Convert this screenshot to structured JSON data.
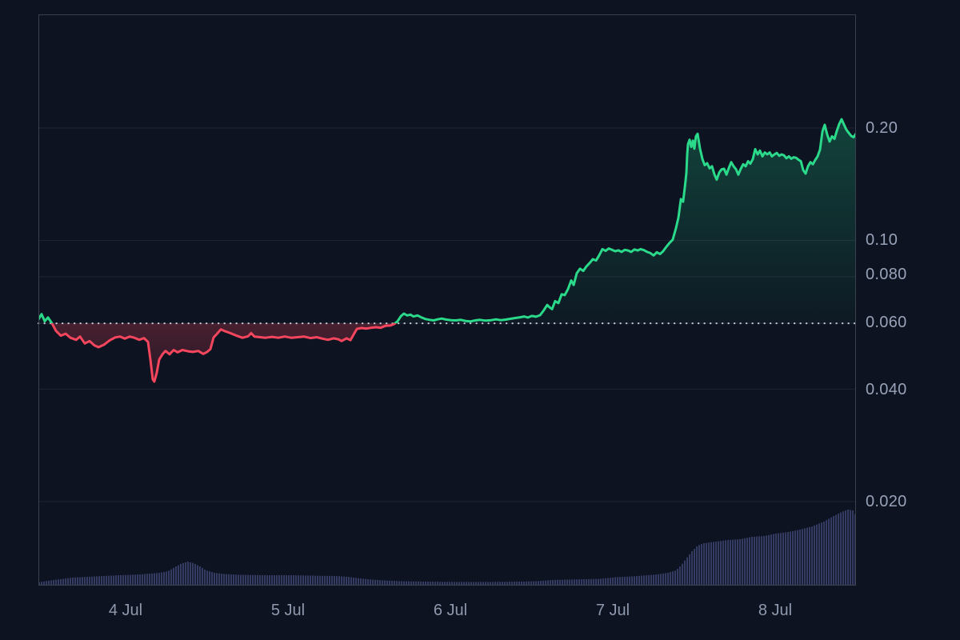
{
  "chart_data": {
    "type": "line",
    "title": "",
    "xlabel": "",
    "ylabel": "",
    "y_axis": {
      "scale": "log",
      "side": "right",
      "range": [
        0.018,
        0.23
      ]
    },
    "grid": true,
    "baseline_value": 0.06,
    "y_ticks": [
      {
        "label": "0.20",
        "value": 0.2
      },
      {
        "label": "0.10",
        "value": 0.1
      },
      {
        "label": "0.080",
        "value": 0.08
      },
      {
        "label": "0.060",
        "value": 0.06
      },
      {
        "label": "0.040",
        "value": 0.04
      },
      {
        "label": "0.020",
        "value": 0.02
      }
    ],
    "x_ticks": [
      {
        "label": "4 Jul",
        "day": 4
      },
      {
        "label": "5 Jul",
        "day": 5
      },
      {
        "label": "6 Jul",
        "day": 6
      },
      {
        "label": "7 Jul",
        "day": 7
      },
      {
        "label": "8 Jul",
        "day": 8
      }
    ],
    "colors": {
      "up_line": "#2bd98a",
      "down_line": "#f6465d",
      "up_fill": "34,211,140",
      "down_fill": "244,68,92",
      "volume_bar": "#343c63",
      "baseline_dots": "rgba(226,232,244,0.85)",
      "gridline": "rgba(160,175,205,0.12)",
      "plot_border": "#3a404e",
      "background": "#0d1320",
      "tick_text": "#98a2b8"
    },
    "price_series": [
      [
        3.463,
        0.0615
      ],
      [
        3.483,
        0.0635
      ],
      [
        3.502,
        0.0608
      ],
      [
        3.522,
        0.0622
      ],
      [
        3.547,
        0.06
      ],
      [
        3.571,
        0.0573
      ],
      [
        3.601,
        0.0556
      ],
      [
        3.631,
        0.0563
      ],
      [
        3.66,
        0.0549
      ],
      [
        3.695,
        0.0542
      ],
      [
        3.719,
        0.0553
      ],
      [
        3.749,
        0.053
      ],
      [
        3.778,
        0.0538
      ],
      [
        3.808,
        0.0524
      ],
      [
        3.833,
        0.0518
      ],
      [
        3.867,
        0.0526
      ],
      [
        3.901,
        0.054
      ],
      [
        3.936,
        0.055
      ],
      [
        3.966,
        0.0553
      ],
      [
        3.995,
        0.0546
      ],
      [
        4.025,
        0.0553
      ],
      [
        4.054,
        0.0549
      ],
      [
        4.084,
        0.0542
      ],
      [
        4.113,
        0.0548
      ],
      [
        4.138,
        0.0535
      ],
      [
        4.153,
        0.0478
      ],
      [
        4.167,
        0.0425
      ],
      [
        4.177,
        0.0419
      ],
      [
        4.192,
        0.0443
      ],
      [
        4.207,
        0.048
      ],
      [
        4.227,
        0.0496
      ],
      [
        4.246,
        0.0506
      ],
      [
        4.271,
        0.0496
      ],
      [
        4.296,
        0.0509
      ],
      [
        4.32,
        0.0502
      ],
      [
        4.35,
        0.0509
      ],
      [
        4.384,
        0.0505
      ],
      [
        4.414,
        0.0503
      ],
      [
        4.448,
        0.0506
      ],
      [
        4.478,
        0.0497
      ],
      [
        4.502,
        0.0503
      ],
      [
        4.522,
        0.0512
      ],
      [
        4.542,
        0.055
      ],
      [
        4.562,
        0.0562
      ],
      [
        4.586,
        0.0578
      ],
      [
        4.611,
        0.0572
      ],
      [
        4.64,
        0.0566
      ],
      [
        4.68,
        0.0557
      ],
      [
        4.719,
        0.0549
      ],
      [
        4.754,
        0.0554
      ],
      [
        4.773,
        0.0565
      ],
      [
        4.793,
        0.0553
      ],
      [
        4.828,
        0.0551
      ],
      [
        4.862,
        0.0549
      ],
      [
        4.901,
        0.0552
      ],
      [
        4.941,
        0.0549
      ],
      [
        4.98,
        0.0553
      ],
      [
        5.02,
        0.0549
      ],
      [
        5.059,
        0.0551
      ],
      [
        5.098,
        0.0553
      ],
      [
        5.138,
        0.0548
      ],
      [
        5.177,
        0.0551
      ],
      [
        5.212,
        0.0546
      ],
      [
        5.246,
        0.0542
      ],
      [
        5.281,
        0.0547
      ],
      [
        5.31,
        0.0544
      ],
      [
        5.33,
        0.0538
      ],
      [
        5.36,
        0.0547
      ],
      [
        5.384,
        0.0541
      ],
      [
        5.404,
        0.056
      ],
      [
        5.424,
        0.058
      ],
      [
        5.453,
        0.0583
      ],
      [
        5.483,
        0.0581
      ],
      [
        5.512,
        0.0584
      ],
      [
        5.542,
        0.0586
      ],
      [
        5.571,
        0.0584
      ],
      [
        5.601,
        0.0591
      ],
      [
        5.631,
        0.0592
      ],
      [
        5.655,
        0.0598
      ],
      [
        5.675,
        0.0608
      ],
      [
        5.695,
        0.0627
      ],
      [
        5.714,
        0.0637
      ],
      [
        5.734,
        0.063
      ],
      [
        5.754,
        0.0633
      ],
      [
        5.773,
        0.0626
      ],
      [
        5.798,
        0.063
      ],
      [
        5.823,
        0.0622
      ],
      [
        5.847,
        0.0616
      ],
      [
        5.872,
        0.0613
      ],
      [
        5.897,
        0.0611
      ],
      [
        5.921,
        0.0615
      ],
      [
        5.946,
        0.0618
      ],
      [
        5.975,
        0.0614
      ],
      [
        6.005,
        0.0612
      ],
      [
        6.034,
        0.0611
      ],
      [
        6.064,
        0.0613
      ],
      [
        6.094,
        0.0609
      ],
      [
        6.123,
        0.0607
      ],
      [
        6.153,
        0.0611
      ],
      [
        6.182,
        0.0613
      ],
      [
        6.217,
        0.061
      ],
      [
        6.251,
        0.0612
      ],
      [
        6.281,
        0.0615
      ],
      [
        6.31,
        0.0612
      ],
      [
        6.34,
        0.0614
      ],
      [
        6.369,
        0.0617
      ],
      [
        6.399,
        0.062
      ],
      [
        6.429,
        0.0623
      ],
      [
        6.453,
        0.0626
      ],
      [
        6.478,
        0.0622
      ],
      [
        6.502,
        0.0628
      ],
      [
        6.527,
        0.0625
      ],
      [
        6.552,
        0.0631
      ],
      [
        6.576,
        0.0651
      ],
      [
        6.596,
        0.0672
      ],
      [
        6.611,
        0.0662
      ],
      [
        6.626,
        0.0655
      ],
      [
        6.645,
        0.0688
      ],
      [
        6.665,
        0.068
      ],
      [
        6.685,
        0.0718
      ],
      [
        6.704,
        0.0714
      ],
      [
        6.724,
        0.0741
      ],
      [
        6.744,
        0.0782
      ],
      [
        6.759,
        0.076
      ],
      [
        6.778,
        0.0817
      ],
      [
        6.798,
        0.084
      ],
      [
        6.818,
        0.0829
      ],
      [
        6.837,
        0.0852
      ],
      [
        6.857,
        0.087
      ],
      [
        6.877,
        0.0891
      ],
      [
        6.897,
        0.0884
      ],
      [
        6.916,
        0.0912
      ],
      [
        6.936,
        0.0948
      ],
      [
        6.956,
        0.0938
      ],
      [
        6.975,
        0.0952
      ],
      [
        6.995,
        0.0944
      ],
      [
        7.015,
        0.0936
      ],
      [
        7.034,
        0.0941
      ],
      [
        7.054,
        0.0932
      ],
      [
        7.074,
        0.0944
      ],
      [
        7.094,
        0.094
      ],
      [
        7.113,
        0.0932
      ],
      [
        7.133,
        0.0946
      ],
      [
        7.153,
        0.094
      ],
      [
        7.172,
        0.0948
      ],
      [
        7.192,
        0.0942
      ],
      [
        7.212,
        0.0932
      ],
      [
        7.232,
        0.0925
      ],
      [
        7.251,
        0.0912
      ],
      [
        7.271,
        0.093
      ],
      [
        7.291,
        0.092
      ],
      [
        7.31,
        0.0936
      ],
      [
        7.33,
        0.0962
      ],
      [
        7.35,
        0.0985
      ],
      [
        7.369,
        0.1005
      ],
      [
        7.389,
        0.108
      ],
      [
        7.404,
        0.115
      ],
      [
        7.419,
        0.129
      ],
      [
        7.433,
        0.127
      ],
      [
        7.448,
        0.144
      ],
      [
        7.453,
        0.152
      ],
      [
        7.458,
        0.17
      ],
      [
        7.463,
        0.181
      ],
      [
        7.473,
        0.186
      ],
      [
        7.483,
        0.178
      ],
      [
        7.493,
        0.185
      ],
      [
        7.502,
        0.176
      ],
      [
        7.512,
        0.19
      ],
      [
        7.522,
        0.193
      ],
      [
        7.537,
        0.176
      ],
      [
        7.552,
        0.165
      ],
      [
        7.566,
        0.159
      ],
      [
        7.581,
        0.161
      ],
      [
        7.596,
        0.156
      ],
      [
        7.611,
        0.158
      ],
      [
        7.626,
        0.15
      ],
      [
        7.64,
        0.1455
      ],
      [
        7.655,
        0.152
      ],
      [
        7.67,
        0.155
      ],
      [
        7.685,
        0.1555
      ],
      [
        7.7,
        0.15
      ],
      [
        7.714,
        0.156
      ],
      [
        7.729,
        0.162
      ],
      [
        7.744,
        0.158
      ],
      [
        7.759,
        0.155
      ],
      [
        7.773,
        0.15
      ],
      [
        7.788,
        0.1555
      ],
      [
        7.803,
        0.16
      ],
      [
        7.818,
        0.158
      ],
      [
        7.833,
        0.163
      ],
      [
        7.847,
        0.1605
      ],
      [
        7.862,
        0.165
      ],
      [
        7.877,
        0.1755
      ],
      [
        7.892,
        0.17
      ],
      [
        7.906,
        0.174
      ],
      [
        7.921,
        0.168
      ],
      [
        7.936,
        0.172
      ],
      [
        7.951,
        0.17
      ],
      [
        7.966,
        0.172
      ],
      [
        7.98,
        0.168
      ],
      [
        7.995,
        0.17
      ],
      [
        8.01,
        0.1715
      ],
      [
        8.025,
        0.1685
      ],
      [
        8.039,
        0.17
      ],
      [
        8.054,
        0.169
      ],
      [
        8.069,
        0.166
      ],
      [
        8.084,
        0.168
      ],
      [
        8.099,
        0.1655
      ],
      [
        8.113,
        0.167
      ],
      [
        8.128,
        0.1665
      ],
      [
        8.143,
        0.1645
      ],
      [
        8.158,
        0.163
      ],
      [
        8.172,
        0.1545
      ],
      [
        8.187,
        0.151
      ],
      [
        8.202,
        0.158
      ],
      [
        8.217,
        0.162
      ],
      [
        8.232,
        0.16
      ],
      [
        8.246,
        0.164
      ],
      [
        8.261,
        0.168
      ],
      [
        8.276,
        0.175
      ],
      [
        8.291,
        0.196
      ],
      [
        8.305,
        0.204
      ],
      [
        8.32,
        0.192
      ],
      [
        8.335,
        0.184
      ],
      [
        8.35,
        0.19
      ],
      [
        8.365,
        0.187
      ],
      [
        8.379,
        0.196
      ],
      [
        8.394,
        0.205
      ],
      [
        8.409,
        0.211
      ],
      [
        8.424,
        0.204
      ],
      [
        8.438,
        0.198
      ],
      [
        8.453,
        0.194
      ],
      [
        8.468,
        0.1905
      ],
      [
        8.483,
        0.189
      ],
      [
        8.497,
        0.193
      ]
    ],
    "volume_units": "relative 0-100",
    "volume_profile": [
      [
        3.463,
        4
      ],
      [
        3.522,
        6
      ],
      [
        3.596,
        8
      ],
      [
        3.67,
        10
      ],
      [
        3.768,
        11
      ],
      [
        3.867,
        12
      ],
      [
        3.966,
        13
      ],
      [
        4.089,
        14
      ],
      [
        4.212,
        16
      ],
      [
        4.261,
        18
      ],
      [
        4.31,
        24
      ],
      [
        4.35,
        28
      ],
      [
        4.384,
        30
      ],
      [
        4.419,
        28
      ],
      [
        4.458,
        24
      ],
      [
        4.497,
        19
      ],
      [
        4.547,
        16
      ],
      [
        4.606,
        14.5
      ],
      [
        4.704,
        13.5
      ],
      [
        4.852,
        13
      ],
      [
        5.0,
        13
      ],
      [
        5.148,
        12.5
      ],
      [
        5.296,
        12
      ],
      [
        5.369,
        11
      ],
      [
        5.443,
        9
      ],
      [
        5.517,
        7.5
      ],
      [
        5.591,
        6.5
      ],
      [
        5.69,
        5.5
      ],
      [
        5.837,
        5
      ],
      [
        6.034,
        4.5
      ],
      [
        6.232,
        4.5
      ],
      [
        6.429,
        5
      ],
      [
        6.527,
        5.5
      ],
      [
        6.626,
        7
      ],
      [
        6.724,
        7.5
      ],
      [
        6.823,
        8
      ],
      [
        6.921,
        8.5
      ],
      [
        7.02,
        10.5
      ],
      [
        7.118,
        11.5
      ],
      [
        7.217,
        13
      ],
      [
        7.276,
        14
      ],
      [
        7.34,
        16
      ],
      [
        7.389,
        19
      ],
      [
        7.424,
        26
      ],
      [
        7.453,
        34
      ],
      [
        7.488,
        43
      ],
      [
        7.522,
        50
      ],
      [
        7.561,
        53
      ],
      [
        7.635,
        55
      ],
      [
        7.709,
        57
      ],
      [
        7.783,
        58
      ],
      [
        7.857,
        61
      ],
      [
        7.931,
        62
      ],
      [
        8.005,
        65
      ],
      [
        8.079,
        67
      ],
      [
        8.153,
        70
      ],
      [
        8.227,
        74
      ],
      [
        8.3,
        80
      ],
      [
        8.36,
        87
      ],
      [
        8.409,
        92
      ],
      [
        8.448,
        95
      ],
      [
        8.478,
        94
      ],
      [
        8.497,
        88
      ]
    ]
  }
}
